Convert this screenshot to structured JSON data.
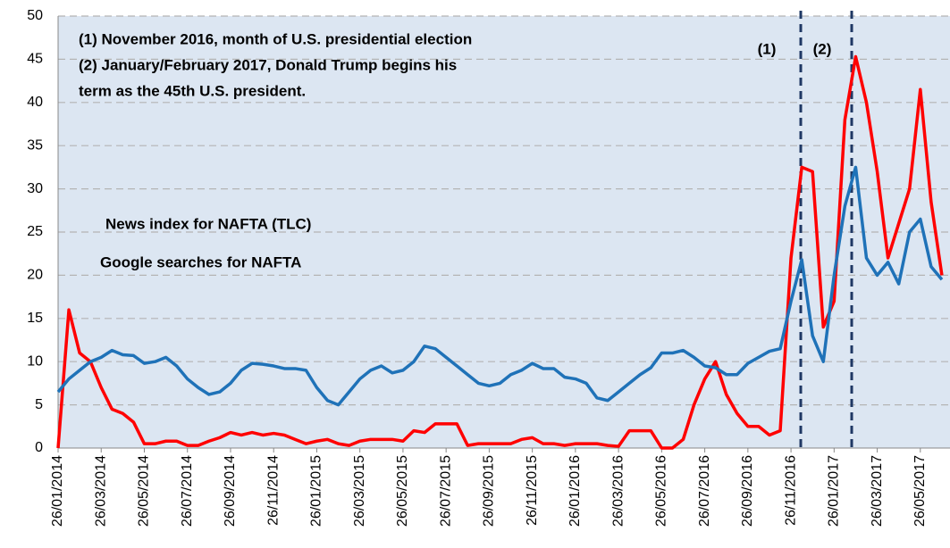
{
  "chart_data": {
    "type": "line",
    "notes": [
      "(1) November 2016, month of U.S. presidential election",
      "(2) January/February 2017, Donald Trump begins his",
      "term as the 45th U.S. president."
    ],
    "markers": [
      "(1)",
      "(2)"
    ],
    "categories": [
      "26/01/2014",
      null,
      null,
      null,
      "26/03/2014",
      null,
      null,
      null,
      "26/05/2014",
      null,
      null,
      null,
      "26/07/2014",
      null,
      null,
      null,
      "26/09/2014",
      null,
      null,
      null,
      "26/11/2014",
      null,
      null,
      null,
      "26/01/2015",
      null,
      null,
      null,
      "26/03/2015",
      null,
      null,
      null,
      "26/05/2015",
      null,
      null,
      null,
      "26/07/2015",
      null,
      null,
      null,
      "26/09/2015",
      null,
      null,
      null,
      "26/11/2015",
      null,
      null,
      null,
      "26/01/2016",
      null,
      null,
      null,
      "26/03/2016",
      null,
      null,
      null,
      "26/05/2016",
      null,
      null,
      null,
      "26/07/2016",
      null,
      null,
      null,
      "26/09/2016",
      null,
      null,
      null,
      "26/11/2016",
      null,
      null,
      null,
      "26/01/2017",
      null,
      null,
      null,
      "26/03/2017",
      null,
      null,
      null,
      "26/05/2017",
      null,
      null
    ],
    "series": [
      {
        "name": "News index for NAFTA (TLC)",
        "color": "#ff0000",
        "values": [
          0,
          16,
          11,
          10,
          7,
          4.5,
          4,
          3,
          0.5,
          0.5,
          0.8,
          0.8,
          0.3,
          0.3,
          0.8,
          1.2,
          1.8,
          1.5,
          1.8,
          1.5,
          1.7,
          1.5,
          1,
          0.5,
          0.8,
          1,
          0.5,
          0.3,
          0.8,
          1,
          1,
          1,
          0.8,
          2,
          1.8,
          2.8,
          2.8,
          2.8,
          0.3,
          0.5,
          0.5,
          0.5,
          0.5,
          1,
          1.2,
          0.5,
          0.5,
          0.3,
          0.5,
          0.5,
          0.5,
          0.3,
          0.2,
          2,
          2,
          2,
          0,
          0,
          1,
          5,
          8,
          10,
          6.2,
          4,
          2.5,
          2.5,
          1.5,
          2,
          22,
          32.5,
          32,
          14,
          17,
          38,
          45.3,
          40,
          32,
          22,
          26,
          30,
          41.5,
          28.5,
          20
        ]
      },
      {
        "name": "Google searches for NAFTA",
        "color": "#1f72b8",
        "values": [
          6.5,
          8,
          9,
          10,
          10.5,
          11.3,
          10.8,
          10.7,
          9.8,
          10,
          10.5,
          9.5,
          8,
          7,
          6.2,
          6.5,
          7.5,
          9,
          9.8,
          9.7,
          9.5,
          9.2,
          9.2,
          9,
          7,
          5.5,
          5,
          6.5,
          8,
          9,
          9.5,
          8.7,
          9,
          10,
          11.8,
          11.5,
          10.5,
          9.5,
          8.5,
          7.5,
          7.2,
          7.5,
          8.5,
          9,
          9.8,
          9.2,
          9.2,
          8.2,
          8,
          7.5,
          5.8,
          5.5,
          6.5,
          7.5,
          8.5,
          9.3,
          11,
          11,
          11.3,
          10.5,
          9.5,
          9.3,
          8.5,
          8.5,
          9.8,
          10.5,
          11.2,
          11.5,
          17,
          21.8,
          13,
          10,
          20,
          28,
          32.5,
          22,
          20,
          21.5,
          19,
          25,
          26.5,
          21,
          19.5
        ]
      }
    ],
    "ylim": [
      0,
      50
    ],
    "yticks": [
      0,
      5,
      10,
      15,
      20,
      25,
      30,
      35,
      40,
      45,
      50
    ],
    "grid": true
  }
}
